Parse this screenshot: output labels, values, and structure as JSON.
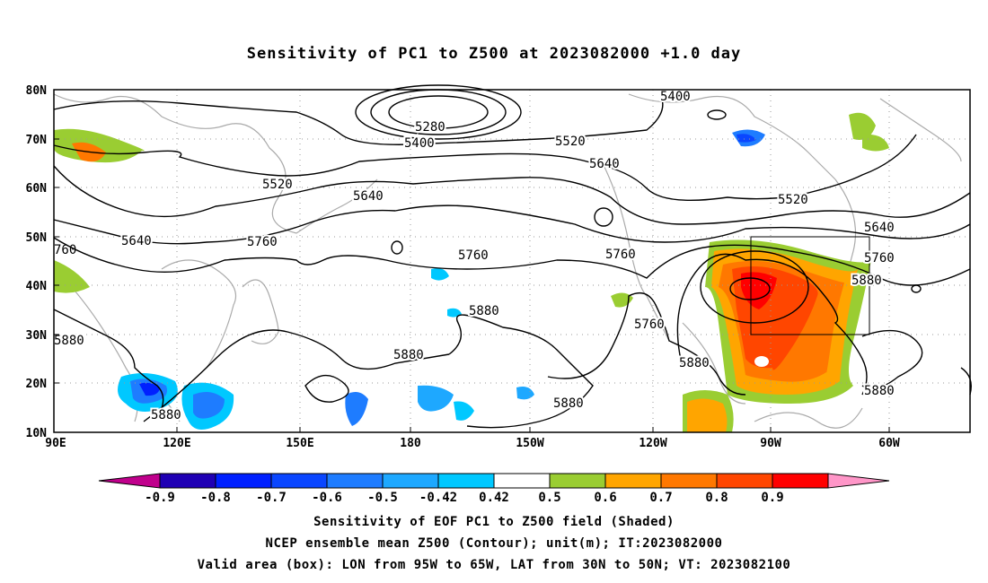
{
  "title": "Sensitivity of PC1 to Z500 at 2023082000 +1.0 day",
  "lat_labels": [
    "80N",
    "70N",
    "60N",
    "50N",
    "40N",
    "30N",
    "20N",
    "10N"
  ],
  "lon_labels": [
    "90E",
    "120E",
    "150E",
    "180",
    "150W",
    "120W",
    "90W",
    "60W"
  ],
  "contour_labels": [
    "5280",
    "5400",
    "5400",
    "5520",
    "5520",
    "5520",
    "5640",
    "5640",
    "5640",
    "5640",
    "5760",
    "5760",
    "5760",
    "5760",
    "5760",
    "5880",
    "5880",
    "5880",
    "5880",
    "5880",
    "5880",
    "5880",
    "5880"
  ],
  "colorbar": {
    "labels": [
      "-0.9",
      "-0.8",
      "-0.7",
      "-0.6",
      "-0.5",
      "-0.42",
      "0.42",
      "0.5",
      "0.6",
      "0.7",
      "0.8",
      "0.9"
    ],
    "colors": [
      "#c0008c",
      "#1f00b4",
      "#0020ff",
      "#0a46ff",
      "#1e7cff",
      "#1ea8ff",
      "#00c8ff",
      "#ffffff",
      "#9acd32",
      "#ffa500",
      "#ff7800",
      "#ff4600",
      "#ff0000",
      "#ff96c8"
    ]
  },
  "valid_box": {
    "lon_from": "95W",
    "lon_to": "65W",
    "lat_from": "30N",
    "lat_to": "50N"
  },
  "captions": [
    "Sensitivity of EOF PC1 to Z500 field (Shaded)",
    "NCEP ensemble mean Z500 (Contour); unit(m); IT:2023082000",
    "Valid area (box): LON from 95W to 65W, LAT from 30N to 50N; VT: 2023082100"
  ]
}
